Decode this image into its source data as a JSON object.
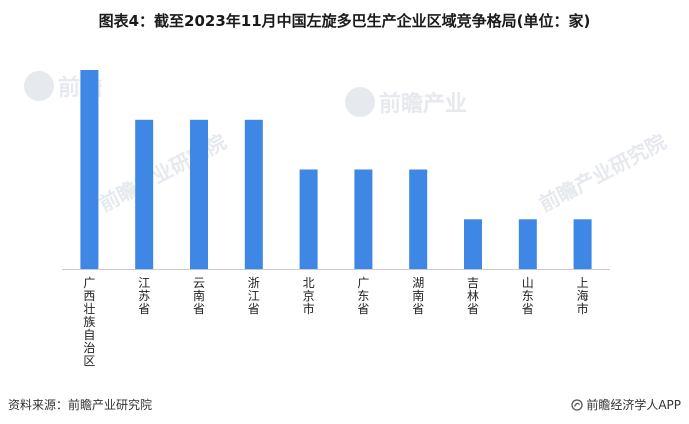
{
  "title": "图表4：截至2023年11月中国左旋多巴生产企业区域竞争格局(单位：家)",
  "chart_data": {
    "type": "bar",
    "title": "图表4：截至2023年11月中国左旋多巴生产企业区域竞争格局(单位：家)",
    "categories": [
      "广西壮族自治区",
      "江苏省",
      "云南省",
      "浙江省",
      "北京市",
      "广东省",
      "湖南省",
      "吉林省",
      "山东省",
      "上海市"
    ],
    "values": [
      4,
      3,
      3,
      3,
      2,
      2,
      2,
      1,
      1,
      1
    ],
    "ylim": [
      0,
      4
    ],
    "bar_color": "#3e87e4",
    "grid": false,
    "legend": "none"
  },
  "footer": {
    "source": "资料来源：前瞻产业研究院",
    "brand": "前瞻经济学人APP"
  },
  "watermark": {
    "text": "前瞻产业研究院",
    "color": "#e6e9ee"
  }
}
